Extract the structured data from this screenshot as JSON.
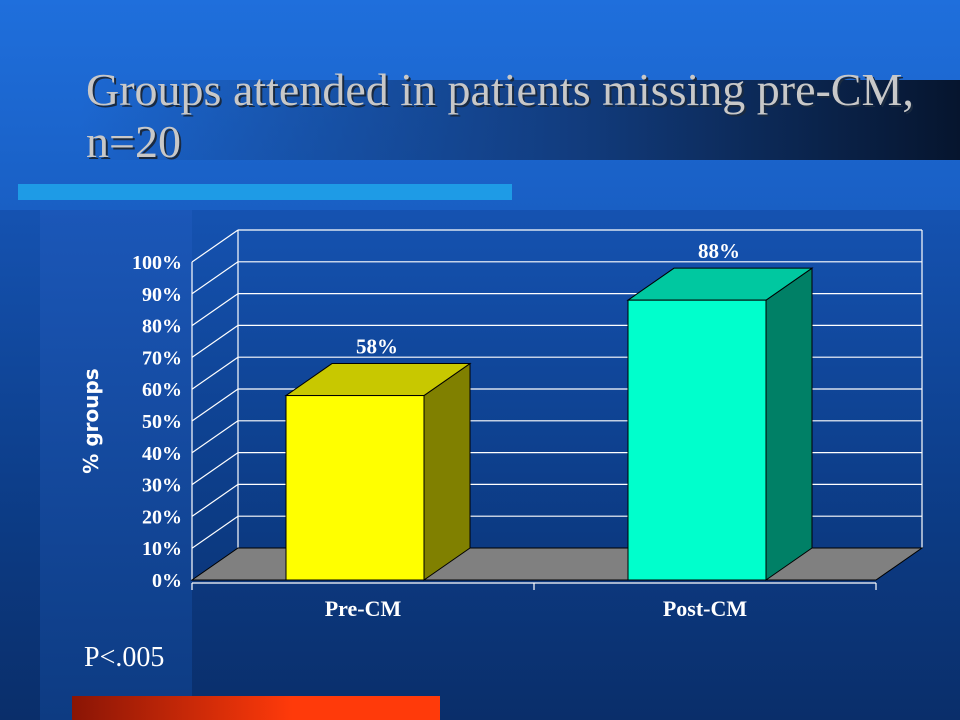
{
  "slide": {
    "title": "Groups attended in patients missing pre-CM, n=20",
    "footnote": "P<.005"
  },
  "chart_data": {
    "type": "bar",
    "categories": [
      "Pre-CM",
      "Post-CM"
    ],
    "values": [
      58,
      88
    ],
    "value_labels": [
      "58%",
      "88%"
    ],
    "ylabel": "% groups",
    "xlabel": "",
    "ylim": [
      0,
      100
    ],
    "yticks": [
      "0%",
      "10%",
      "20%",
      "30%",
      "40%",
      "50%",
      "60%",
      "70%",
      "80%",
      "90%",
      "100%"
    ],
    "grid": true,
    "legend": "none",
    "style": "3d",
    "colors": {
      "bar_fronts": [
        "#ffff00",
        "#00ffcc"
      ],
      "bar_tops": [
        "#c8c800",
        "#00c8a0"
      ],
      "bar_sides": [
        "#808000",
        "#008066"
      ],
      "floor": "#808080",
      "gridline": "#ffffff",
      "text": "#ffffff"
    }
  }
}
